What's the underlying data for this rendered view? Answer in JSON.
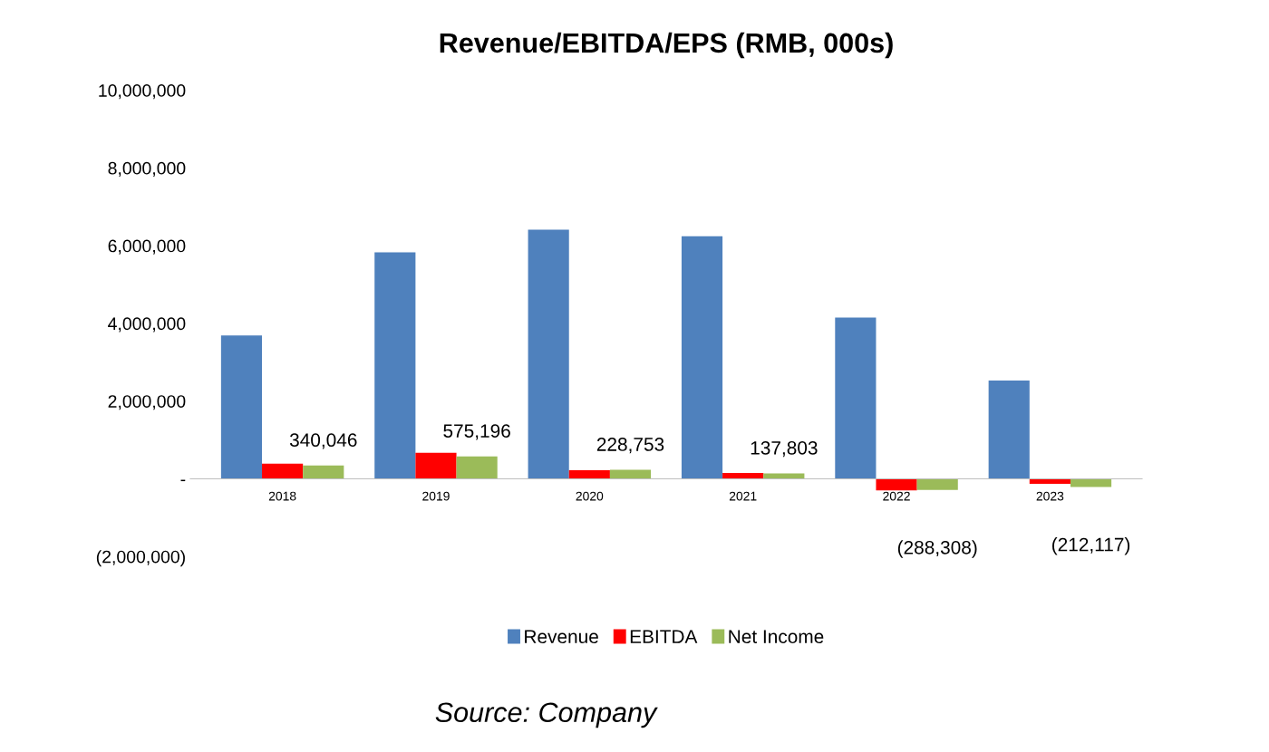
{
  "chart_data": {
    "type": "bar",
    "title": "Revenue/EBITDA/EPS (RMB, 000s)",
    "categories": [
      "2018",
      "2019",
      "2020",
      "2021",
      "2022",
      "2023"
    ],
    "series": [
      {
        "name": "Revenue",
        "color": "#4f81bd",
        "values": [
          3690000,
          5830000,
          6410000,
          6240000,
          4150000,
          2530000
        ]
      },
      {
        "name": "EBITDA",
        "color": "#ff0000",
        "values": [
          390000,
          670000,
          220000,
          150000,
          -300000,
          -130000
        ]
      },
      {
        "name": "Net Income",
        "color": "#9bbb59",
        "values": [
          340046,
          575196,
          228753,
          137803,
          -288308,
          -212117
        ],
        "value_labels": [
          "340,046",
          "575,196",
          "228,753",
          "137,803",
          "(288,308)",
          "(212,117)"
        ]
      }
    ],
    "ylim": [
      -2000000,
      10000000
    ],
    "yticks": [
      {
        "value": -2000000,
        "label": "(2,000,000)"
      },
      {
        "value": 0,
        "label": "-"
      },
      {
        "value": 2000000,
        "label": "2,000,000"
      },
      {
        "value": 4000000,
        "label": "4,000,000"
      },
      {
        "value": 6000000,
        "label": "6,000,000"
      },
      {
        "value": 8000000,
        "label": "8,000,000"
      },
      {
        "value": 10000000,
        "label": "10,000,000"
      }
    ],
    "grid": false,
    "legend": "bottom",
    "annotations": [
      "Source: Company"
    ]
  }
}
